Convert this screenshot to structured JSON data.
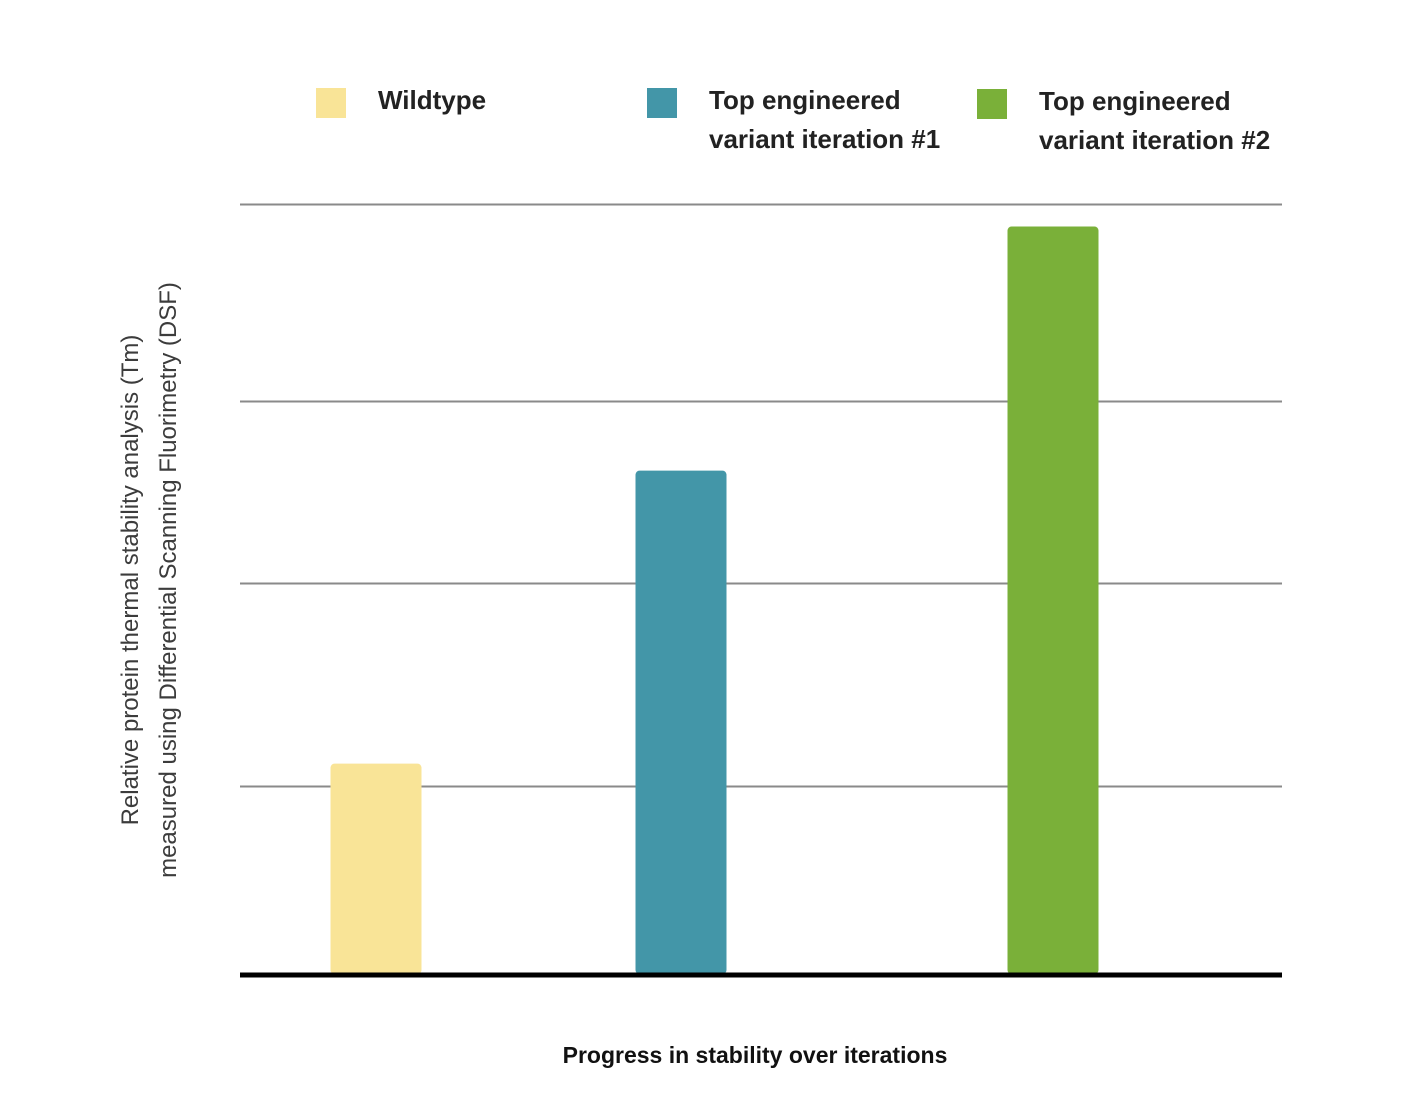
{
  "chart_data": {
    "type": "bar",
    "title": "",
    "xlabel": "Progress in stability over iterations",
    "ylabel": "Relative protein thermal stability analysis (Tm)\nmeasured using Differential Scanning Fluorimetry (DSF)",
    "categories": [
      "Wildtype",
      "Top engineered\nvariant iteration #1",
      "Top engineered\nvariant iteration #2"
    ],
    "values": [
      1.12,
      2.68,
      3.98
    ],
    "colors": [
      "#f9e497",
      "#4396a8",
      "#7ab039"
    ],
    "ylim": [
      0,
      4.1
    ],
    "gridlines": [
      1.0,
      2.08,
      3.05,
      4.1
    ],
    "grid": true,
    "tick_labels_shown": false,
    "legend_position": "top"
  },
  "legend": {
    "items": [
      {
        "label": "Wildtype",
        "color": "#f9e497"
      },
      {
        "label": "Top engineered\nvariant iteration #1",
        "color": "#4396a8"
      },
      {
        "label": "Top engineered\nvariant iteration #2",
        "color": "#7ab039"
      }
    ]
  }
}
